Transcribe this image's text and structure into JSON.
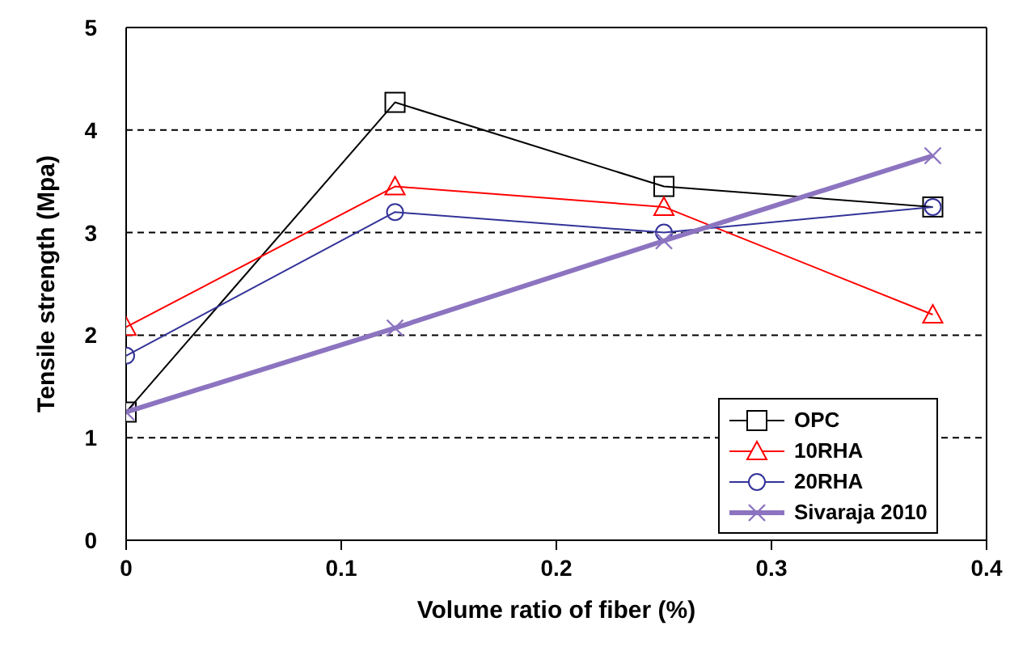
{
  "chart_data": {
    "type": "line",
    "xlabel": "Volume ratio of fiber (%)",
    "ylabel": "Tensile strength (Mpa)",
    "x": [
      0,
      0.125,
      0.25,
      0.375
    ],
    "xlim": [
      0,
      0.4
    ],
    "xticks": [
      0,
      0.1,
      0.2,
      0.3,
      0.4
    ],
    "ylim": [
      0,
      5
    ],
    "yticks": [
      0,
      1,
      2,
      3,
      4,
      5
    ],
    "grid": "y",
    "legend": "bottom right",
    "series": [
      {
        "name": "OPC",
        "color": "#000000",
        "marker": "square",
        "values": [
          1.25,
          4.27,
          3.45,
          3.25
        ]
      },
      {
        "name": "10RHA",
        "color": "#ff0000",
        "marker": "triangle",
        "values": [
          2.08,
          3.45,
          3.25,
          2.2
        ]
      },
      {
        "name": "20RHA",
        "color": "#333399",
        "marker": "circle",
        "values": [
          1.8,
          3.2,
          3.0,
          3.25
        ]
      },
      {
        "name": "Sivaraja 2010",
        "color": "#8c74c0",
        "marker": "cross",
        "values": [
          1.25,
          2.07,
          2.92,
          3.75
        ]
      }
    ]
  }
}
